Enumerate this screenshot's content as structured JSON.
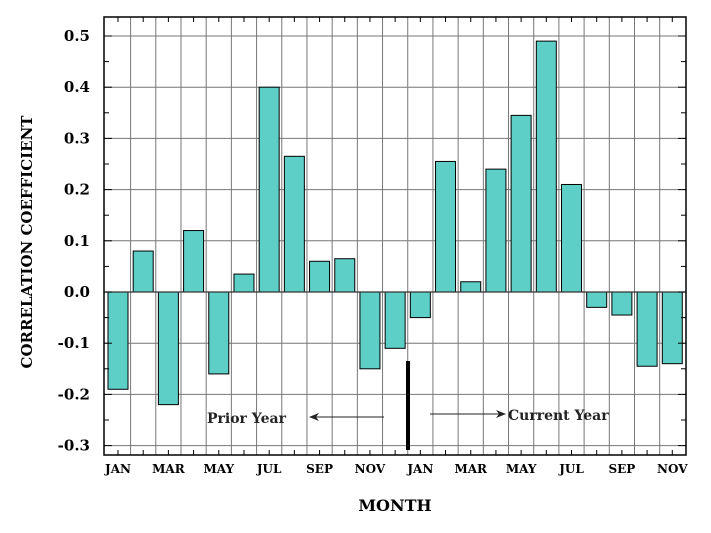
{
  "chart_data": {
    "type": "bar",
    "xlabel": "MONTH",
    "ylabel": "CORRELATION COEFFICIENT",
    "ylim": [
      -0.3,
      0.5
    ],
    "y_ticks": [
      "0.5",
      "0.4",
      "0.3",
      "0.2",
      "0.1",
      "0.0",
      "-0.1",
      "-0.2",
      "-0.3"
    ],
    "x_tick_labels": [
      "JAN",
      "MAR",
      "MAY",
      "JUL",
      "SEP",
      "NOV",
      "JAN",
      "MAR",
      "MAY",
      "JUL",
      "SEP",
      "NOV"
    ],
    "categories": [
      "JAN",
      "FEB",
      "MAR",
      "APR",
      "MAY",
      "JUN",
      "JUL",
      "AUG",
      "SEP",
      "OCT",
      "NOV",
      "DEC",
      "JAN",
      "FEB",
      "MAR",
      "APR",
      "MAY",
      "JUN",
      "JUL",
      "AUG",
      "SEP",
      "OCT",
      "NOV"
    ],
    "values": [
      -0.19,
      0.08,
      -0.22,
      0.12,
      -0.16,
      0.035,
      0.4,
      0.265,
      0.06,
      0.065,
      -0.15,
      -0.11,
      -0.05,
      0.255,
      0.02,
      0.24,
      0.345,
      0.49,
      0.21,
      -0.03,
      -0.045,
      -0.145,
      -0.14
    ],
    "grid": true,
    "bar_color": "#5ecfc7",
    "annotations": {
      "prior": "Prior Year",
      "current": "Current Year"
    }
  }
}
